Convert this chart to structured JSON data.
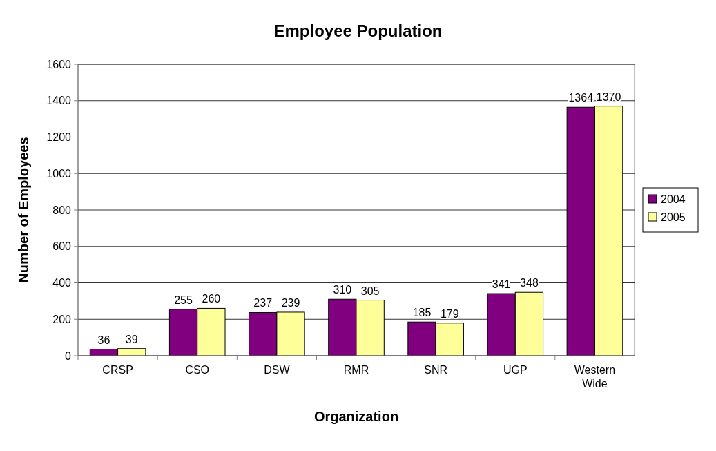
{
  "chart_data": {
    "type": "bar",
    "title": "Employee Population",
    "xlabel": "Organization",
    "ylabel": "Number of Employees",
    "categories": [
      "CRSP",
      "CSO",
      "DSW",
      "RMR",
      "SNR",
      "UGP",
      "Western Wide"
    ],
    "series": [
      {
        "name": "2004",
        "color": "#800080",
        "values": [
          36,
          255,
          237,
          310,
          185,
          341,
          1364
        ]
      },
      {
        "name": "2005",
        "color": "#ffff99",
        "values": [
          39,
          260,
          239,
          305,
          179,
          348,
          1370
        ]
      }
    ],
    "ylim": [
      0,
      1600
    ],
    "yticks": [
      0,
      200,
      400,
      600,
      800,
      1000,
      1200,
      1400,
      1600
    ],
    "grid": "y",
    "legend": "right",
    "data_labels": true
  }
}
